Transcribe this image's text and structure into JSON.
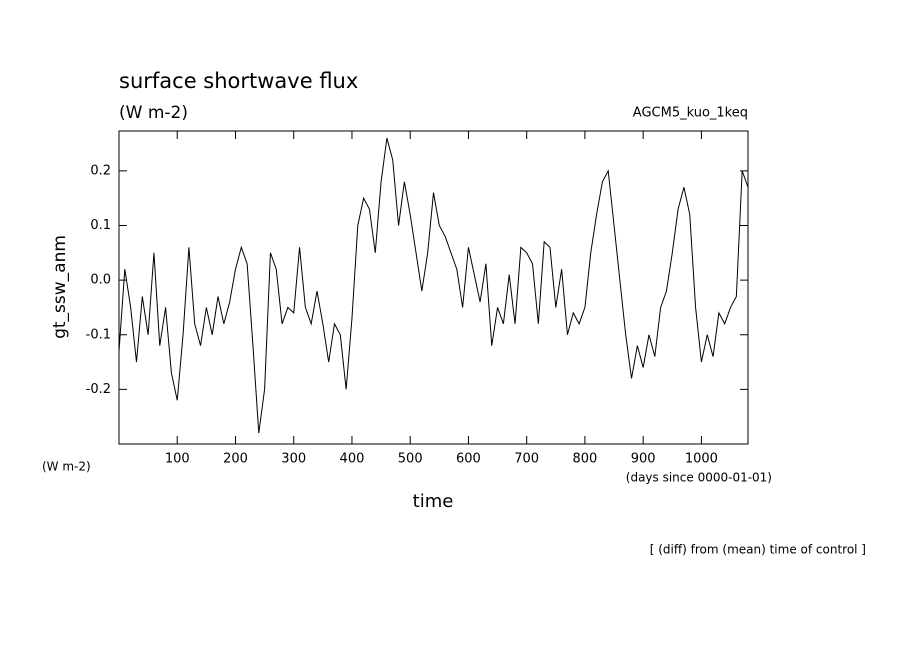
{
  "chart_data": {
    "type": "line",
    "title": "surface shortwave flux",
    "subtitle": "(W m-2)",
    "annotation": "AGCM5_kuo_1keq",
    "y_label": "gt_ssw_anm",
    "y_units": "(W m-2)",
    "x_units": "(days since 0000-01-01)",
    "x_label": "time",
    "footer": "[ (diff) from (mean) time of control ]",
    "xlim": [
      0,
      1080
    ],
    "ylim": [
      -0.3,
      0.273
    ],
    "xticks": [
      100,
      200,
      300,
      400,
      500,
      600,
      700,
      800,
      900,
      1000
    ],
    "yticks": [
      -0.2,
      -0.1,
      {
        "value": 0,
        "label": "0.0"
      },
      0.1,
      0.2
    ],
    "x": [
      0,
      10,
      20,
      30,
      40,
      50,
      60,
      70,
      80,
      90,
      100,
      110,
      120,
      130,
      140,
      150,
      160,
      170,
      180,
      190,
      200,
      210,
      220,
      230,
      240,
      250,
      260,
      270,
      280,
      290,
      300,
      310,
      320,
      330,
      340,
      350,
      360,
      370,
      380,
      390,
      400,
      410,
      420,
      430,
      440,
      450,
      460,
      470,
      480,
      490,
      500,
      510,
      520,
      530,
      540,
      550,
      560,
      570,
      580,
      590,
      600,
      610,
      620,
      630,
      640,
      650,
      660,
      670,
      680,
      690,
      700,
      710,
      720,
      730,
      740,
      750,
      760,
      770,
      780,
      790,
      800,
      810,
      820,
      830,
      840,
      850,
      860,
      870,
      880,
      890,
      900,
      910,
      920,
      930,
      940,
      950,
      960,
      970,
      980,
      990,
      1000,
      1010,
      1020,
      1030,
      1040,
      1050,
      1060,
      1070,
      1080
    ],
    "series": [
      {
        "color": "#000000",
        "values": [
          -0.13,
          0.02,
          -0.05,
          -0.15,
          -0.03,
          -0.1,
          0.05,
          -0.12,
          -0.05,
          -0.17,
          -0.22,
          -0.1,
          0.06,
          -0.08,
          -0.12,
          -0.05,
          -0.1,
          -0.03,
          -0.08,
          -0.04,
          0.02,
          0.06,
          0.03,
          -0.12,
          -0.28,
          -0.2,
          0.05,
          0.02,
          -0.08,
          -0.05,
          -0.06,
          0.06,
          -0.05,
          -0.08,
          -0.02,
          -0.08,
          -0.15,
          -0.08,
          -0.1,
          -0.2,
          -0.07,
          0.1,
          0.15,
          0.13,
          0.05,
          0.18,
          0.26,
          0.22,
          0.1,
          0.18,
          0.12,
          0.05,
          -0.02,
          0.05,
          0.16,
          0.1,
          0.08,
          0.05,
          0.02,
          -0.05,
          0.06,
          0.01,
          -0.04,
          0.03,
          -0.12,
          -0.05,
          -0.08,
          0.01,
          -0.08,
          0.06,
          0.05,
          0.03,
          -0.08,
          0.07,
          0.06,
          -0.05,
          0.02,
          -0.1,
          -0.06,
          -0.08,
          -0.05,
          0.05,
          0.12,
          0.18,
          0.2,
          0.1,
          0.0,
          -0.1,
          -0.18,
          -0.12,
          -0.16,
          -0.1,
          -0.14,
          -0.05,
          -0.02,
          0.05,
          0.13,
          0.17,
          0.12,
          -0.05,
          -0.15,
          -0.1,
          -0.14,
          -0.06,
          -0.08,
          -0.05,
          -0.03,
          0.2,
          0.17
        ]
      }
    ]
  }
}
